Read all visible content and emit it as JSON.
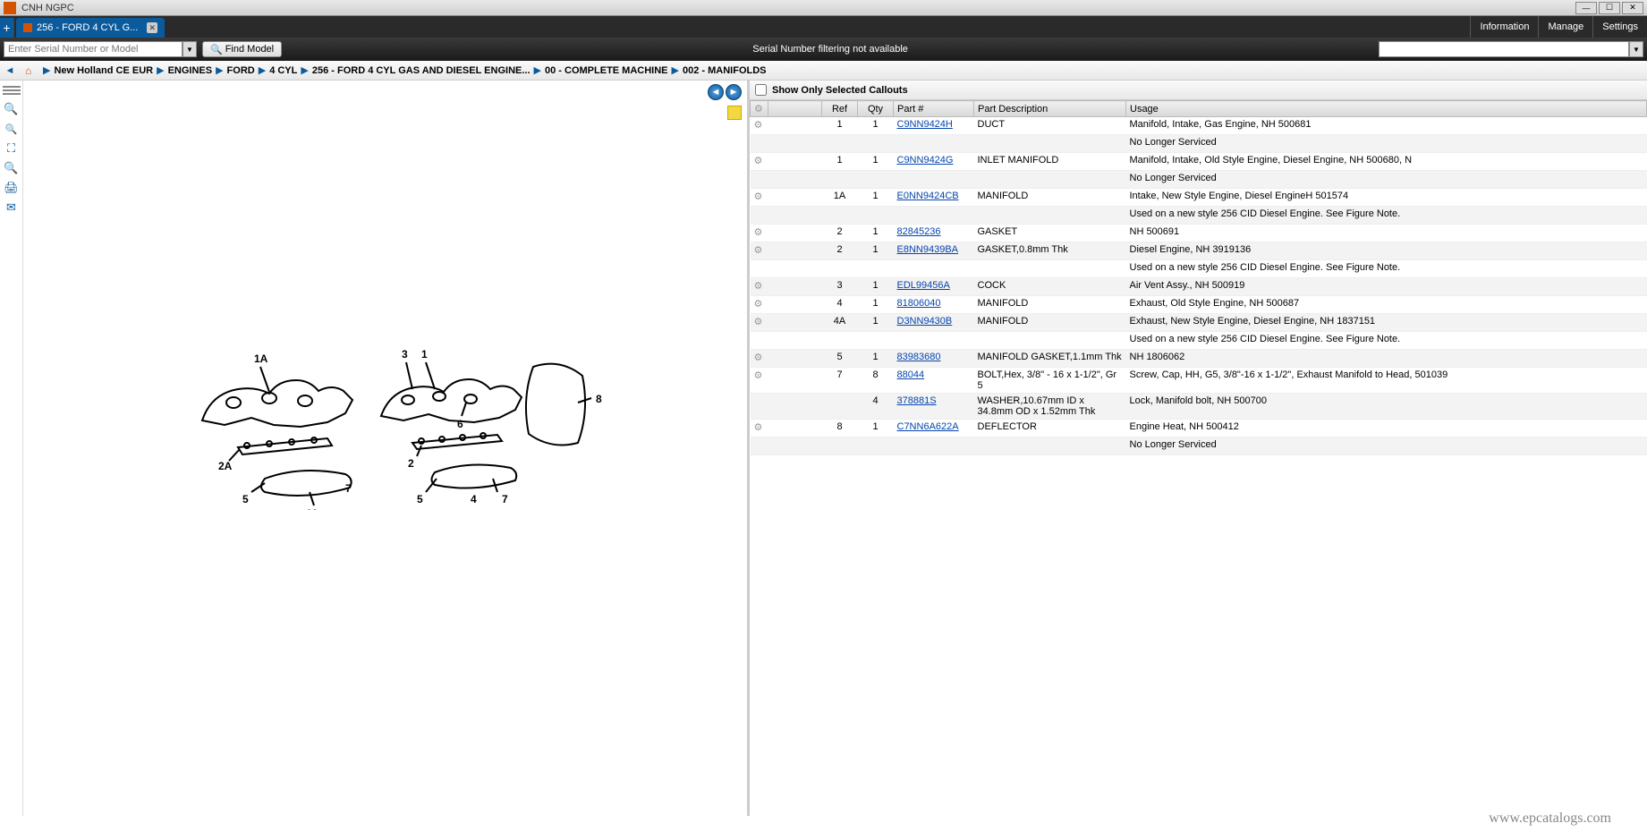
{
  "window": {
    "title": "CNH NGPC"
  },
  "tab": {
    "label": "256 - FORD 4 CYL G..."
  },
  "menu": {
    "info": "Information",
    "manage": "Manage",
    "settings": "Settings"
  },
  "toolbar": {
    "serial_placeholder": "Enter Serial Number or Model",
    "find_label": "Find Model",
    "center_msg": "Serial Number filtering not available"
  },
  "breadcrumb": [
    "New Holland CE EUR",
    "ENGINES",
    "FORD",
    "4 CYL",
    "256 - FORD 4 CYL GAS AND DIESEL ENGINE...",
    "00 - COMPLETE MACHINE",
    "002 - MANIFOLDS"
  ],
  "callouts": {
    "show_only": "Show Only Selected Callouts"
  },
  "columns": {
    "ref": "Ref",
    "qty": "Qty",
    "part": "Part #",
    "desc": "Part Description",
    "usage": "Usage"
  },
  "rows": [
    {
      "g": true,
      "ref": "1",
      "qty": "1",
      "part": "C9NN9424H",
      "desc": "DUCT",
      "usage": "Manifold, Intake, Gas Engine, NH 500681"
    },
    {
      "g": false,
      "ref": "",
      "qty": "",
      "part": "",
      "desc": "",
      "usage": "No Longer Serviced"
    },
    {
      "g": true,
      "ref": "1",
      "qty": "1",
      "part": "C9NN9424G",
      "desc": "INLET MANIFOLD",
      "usage": "Manifold, Intake, Old Style Engine, Diesel Engine, NH 500680, N"
    },
    {
      "g": false,
      "ref": "",
      "qty": "",
      "part": "",
      "desc": "",
      "usage": "No Longer Serviced"
    },
    {
      "g": true,
      "ref": "1A",
      "qty": "1",
      "part": "E0NN9424CB",
      "desc": "MANIFOLD",
      "usage": "Intake, New Style Engine, Diesel EngineH 501574"
    },
    {
      "g": false,
      "ref": "",
      "qty": "",
      "part": "",
      "desc": "",
      "usage": "Used on a new style 256 CID Diesel Engine. See Figure Note."
    },
    {
      "g": true,
      "ref": "2",
      "qty": "1",
      "part": "82845236",
      "desc": "GASKET",
      "usage": "NH 500691"
    },
    {
      "g": true,
      "ref": "2",
      "qty": "1",
      "part": "E8NN9439BA",
      "desc": "GASKET,0.8mm Thk",
      "usage": "Diesel Engine, NH 3919136"
    },
    {
      "g": false,
      "ref": "",
      "qty": "",
      "part": "",
      "desc": "",
      "usage": "Used on a new style 256 CID Diesel Engine. See Figure Note."
    },
    {
      "g": true,
      "ref": "3",
      "qty": "1",
      "part": "EDL99456A",
      "desc": "COCK",
      "usage": "Air Vent Assy., NH 500919"
    },
    {
      "g": true,
      "ref": "4",
      "qty": "1",
      "part": "81806040",
      "desc": "MANIFOLD",
      "usage": "Exhaust, Old Style Engine, NH 500687"
    },
    {
      "g": true,
      "ref": "4A",
      "qty": "1",
      "part": "D3NN9430B",
      "desc": "MANIFOLD",
      "usage": "Exhaust, New Style Engine, Diesel Engine, NH 1837151"
    },
    {
      "g": false,
      "ref": "",
      "qty": "",
      "part": "",
      "desc": "",
      "usage": "Used on a new style 256 CID Diesel Engine. See Figure Note."
    },
    {
      "g": true,
      "ref": "5",
      "qty": "1",
      "part": "83983680",
      "desc": "MANIFOLD GASKET,1.1mm Thk",
      "usage": "NH 1806062"
    },
    {
      "g": true,
      "ref": "7",
      "qty": "8",
      "part": "88044",
      "desc": "BOLT,Hex, 3/8\" - 16 x 1-1/2\", Gr 5",
      "usage": "Screw, Cap, HH, G5, 3/8\"-16 x 1-1/2\", Exhaust Manifold to Head, 501039"
    },
    {
      "g": false,
      "ref": "",
      "qty": "4",
      "part": "378881S",
      "desc": "WASHER,10.67mm ID x 34.8mm OD x 1.52mm Thk",
      "usage": "Lock, Manifold bolt,  NH 500700"
    },
    {
      "g": true,
      "ref": "8",
      "qty": "1",
      "part": "C7NN6A622A",
      "desc": "DEFLECTOR",
      "usage": "Engine Heat, NH 500412"
    },
    {
      "g": false,
      "ref": "",
      "qty": "",
      "part": "",
      "desc": "",
      "usage": "No Longer Serviced"
    }
  ],
  "watermark": "www.epcatalogs.com"
}
